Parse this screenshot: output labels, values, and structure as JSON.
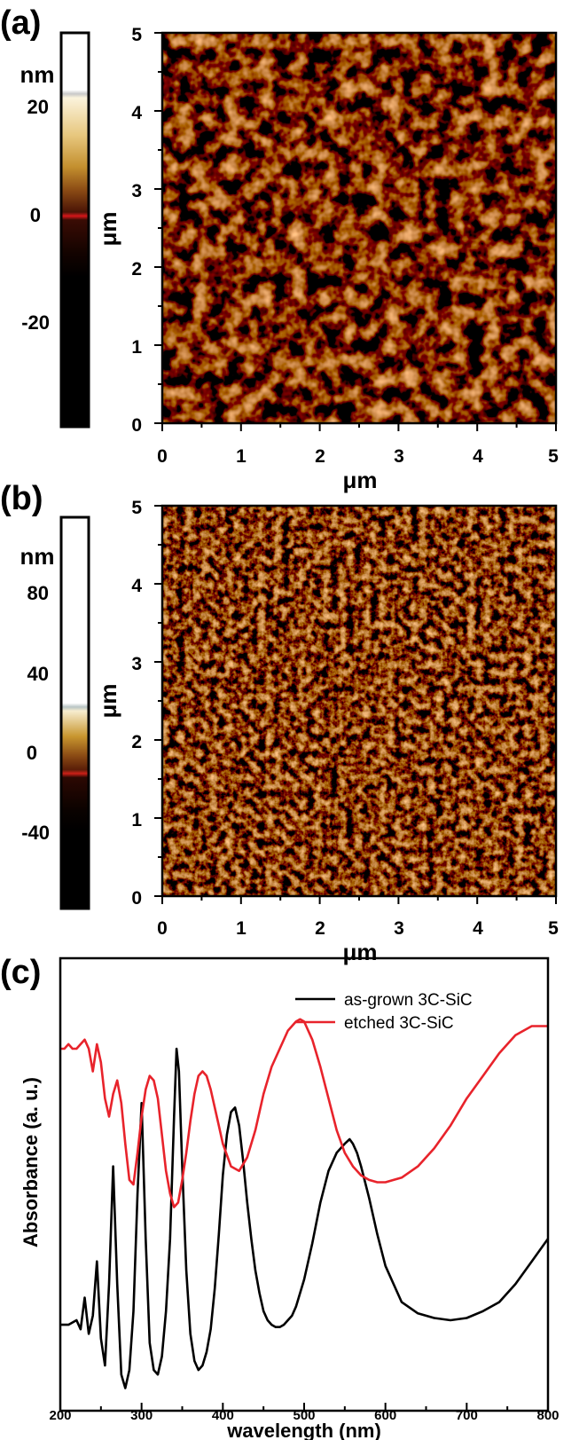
{
  "panels": {
    "a": {
      "label": "(a)",
      "colorbar": {
        "unit": "nm",
        "ticks": [
          "20",
          "0",
          "-20"
        ],
        "tick_values": [
          20,
          0,
          -20
        ],
        "range": [
          -42,
          37
        ]
      },
      "map": {
        "x_ticks": [
          "0",
          "1",
          "2",
          "3",
          "4",
          "5"
        ],
        "y_ticks": [
          "0",
          "1",
          "2",
          "3",
          "4",
          "5"
        ],
        "x_label": "μm",
        "y_label": "μm"
      }
    },
    "b": {
      "label": "(b)",
      "colorbar": {
        "unit": "nm",
        "ticks": [
          "80",
          "40",
          "0",
          "-40"
        ],
        "tick_values": [
          80,
          40,
          0,
          -40
        ],
        "range": [
          -74,
          117
        ]
      },
      "map": {
        "x_ticks": [
          "0",
          "1",
          "2",
          "3",
          "4",
          "5"
        ],
        "y_ticks": [
          "0",
          "1",
          "2",
          "3",
          "4",
          "5"
        ],
        "x_label": "μm",
        "y_label": "μm"
      }
    },
    "c": {
      "label": "(c)"
    }
  },
  "chart_data": [
    {
      "type": "heatmap",
      "panel": "a",
      "title": "",
      "xlabel": "μm",
      "ylabel": "μm",
      "xlim": [
        0,
        5
      ],
      "ylim": [
        0,
        5
      ],
      "colorbar_label": "nm",
      "colorbar_ticks": [
        20,
        0,
        -20
      ]
    },
    {
      "type": "heatmap",
      "panel": "b",
      "title": "",
      "xlabel": "μm",
      "ylabel": "μm",
      "xlim": [
        0,
        5
      ],
      "ylim": [
        0,
        5
      ],
      "colorbar_label": "nm",
      "colorbar_ticks": [
        80,
        40,
        0,
        -40
      ]
    },
    {
      "type": "line",
      "panel": "c",
      "title": "",
      "xlabel": "wavelength (nm)",
      "ylabel": "Absorbance (a. u.)",
      "xlim": [
        200,
        800
      ],
      "ylim": [
        0,
        1
      ],
      "x_ticks": [
        200,
        300,
        400,
        500,
        600,
        700,
        800
      ],
      "legend_position": "top-right",
      "grid": false,
      "series": [
        {
          "name": "as-grown 3C-SiC",
          "color": "#000000",
          "x": [
            200,
            210,
            220,
            225,
            230,
            235,
            240,
            245,
            250,
            255,
            260,
            265,
            270,
            275,
            280,
            285,
            290,
            295,
            300,
            305,
            310,
            315,
            320,
            325,
            330,
            335,
            340,
            343,
            346,
            350,
            355,
            360,
            365,
            370,
            375,
            380,
            385,
            390,
            395,
            400,
            405,
            410,
            415,
            420,
            425,
            430,
            435,
            440,
            445,
            450,
            455,
            460,
            465,
            470,
            475,
            480,
            485,
            490,
            500,
            510,
            520,
            530,
            540,
            550,
            556,
            560,
            565,
            570,
            580,
            590,
            600,
            620,
            640,
            660,
            680,
            700,
            720,
            740,
            760,
            780,
            800
          ],
          "y": [
            0.19,
            0.19,
            0.2,
            0.18,
            0.25,
            0.17,
            0.21,
            0.33,
            0.16,
            0.1,
            0.28,
            0.54,
            0.28,
            0.08,
            0.05,
            0.09,
            0.22,
            0.48,
            0.68,
            0.38,
            0.15,
            0.09,
            0.08,
            0.12,
            0.22,
            0.38,
            0.65,
            0.8,
            0.75,
            0.54,
            0.31,
            0.17,
            0.11,
            0.09,
            0.1,
            0.13,
            0.18,
            0.27,
            0.39,
            0.52,
            0.61,
            0.66,
            0.67,
            0.63,
            0.55,
            0.46,
            0.38,
            0.31,
            0.26,
            0.22,
            0.2,
            0.19,
            0.185,
            0.185,
            0.19,
            0.2,
            0.21,
            0.23,
            0.29,
            0.37,
            0.46,
            0.53,
            0.57,
            0.59,
            0.6,
            0.59,
            0.57,
            0.54,
            0.47,
            0.39,
            0.32,
            0.24,
            0.215,
            0.205,
            0.2,
            0.205,
            0.22,
            0.24,
            0.28,
            0.33,
            0.38
          ]
        },
        {
          "name": "etched 3C-SiC",
          "color": "#e8232b",
          "x": [
            200,
            205,
            210,
            215,
            220,
            225,
            230,
            235,
            240,
            245,
            250,
            255,
            260,
            265,
            270,
            275,
            280,
            285,
            290,
            295,
            300,
            305,
            310,
            315,
            320,
            325,
            330,
            335,
            340,
            345,
            350,
            355,
            360,
            365,
            370,
            375,
            380,
            385,
            390,
            395,
            400,
            410,
            420,
            430,
            440,
            450,
            460,
            470,
            480,
            490,
            495,
            500,
            510,
            520,
            530,
            540,
            550,
            560,
            570,
            580,
            590,
            600,
            610,
            620,
            640,
            660,
            680,
            700,
            720,
            740,
            760,
            780,
            800
          ],
          "y": [
            0.8,
            0.8,
            0.81,
            0.8,
            0.8,
            0.81,
            0.82,
            0.8,
            0.75,
            0.81,
            0.77,
            0.69,
            0.65,
            0.7,
            0.73,
            0.68,
            0.59,
            0.51,
            0.5,
            0.57,
            0.65,
            0.71,
            0.74,
            0.73,
            0.69,
            0.61,
            0.53,
            0.48,
            0.45,
            0.46,
            0.51,
            0.57,
            0.64,
            0.7,
            0.74,
            0.75,
            0.74,
            0.71,
            0.67,
            0.63,
            0.59,
            0.54,
            0.53,
            0.56,
            0.62,
            0.7,
            0.76,
            0.8,
            0.84,
            0.86,
            0.865,
            0.86,
            0.82,
            0.76,
            0.69,
            0.62,
            0.57,
            0.54,
            0.52,
            0.51,
            0.505,
            0.505,
            0.51,
            0.515,
            0.54,
            0.58,
            0.63,
            0.69,
            0.74,
            0.79,
            0.83,
            0.85,
            0.85
          ]
        }
      ]
    }
  ]
}
